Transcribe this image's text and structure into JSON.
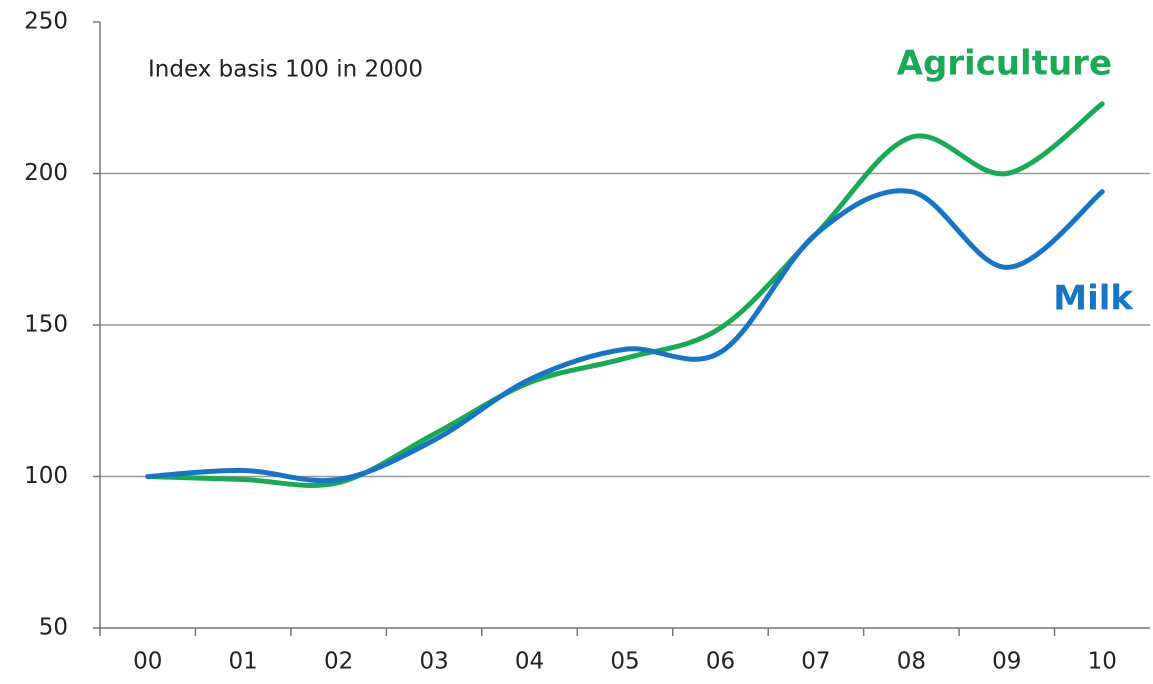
{
  "chart_data": {
    "type": "line",
    "annotations": [
      "Index basis 100 in 2000"
    ],
    "categories": [
      "00",
      "01",
      "02",
      "03",
      "04",
      "05",
      "06",
      "07",
      "08",
      "09",
      "10"
    ],
    "series": [
      {
        "name": "Agriculture",
        "color": "#1aaa55",
        "values": [
          100,
          99,
          98,
          114,
          131,
          139,
          149,
          180,
          212,
          200,
          223
        ]
      },
      {
        "name": "Milk",
        "color": "#1874c4",
        "values": [
          100,
          102,
          99,
          112,
          132,
          142,
          141,
          180,
          194,
          169,
          194
        ]
      }
    ],
    "ylim": [
      50,
      250
    ],
    "yticks": [
      50,
      100,
      150,
      200,
      250
    ],
    "grid": true
  }
}
